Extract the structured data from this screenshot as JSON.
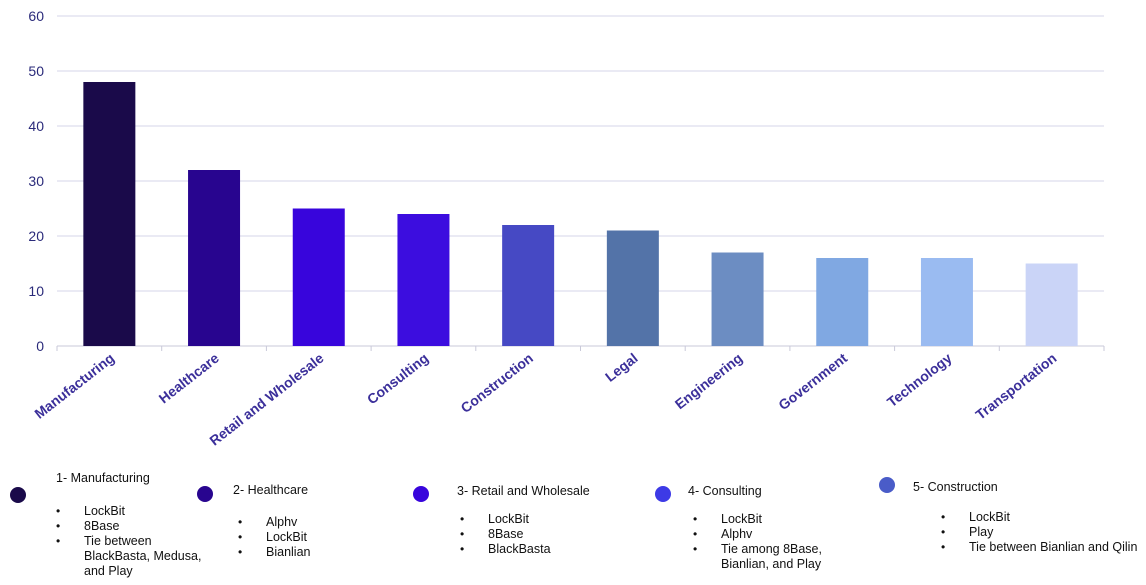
{
  "chart_data": {
    "type": "bar",
    "categories": [
      "Manufacturing",
      "Healthcare",
      "Retail and Wholesale",
      "Consulting",
      "Construction",
      "Legal",
      "Engineering",
      "Government",
      "Technology",
      "Transportation"
    ],
    "values": [
      48,
      32,
      25,
      24,
      22,
      21,
      17,
      16,
      16,
      15
    ],
    "colors": [
      "#1a0a4a",
      "#28058f",
      "#3805dc",
      "#3c0ddf",
      "#4649c4",
      "#5373a8",
      "#6c8dc2",
      "#80a8e2",
      "#9abbf1",
      "#cad4f7"
    ],
    "ylim": [
      0,
      60
    ],
    "yticks": [
      0,
      10,
      20,
      30,
      40,
      50,
      60
    ],
    "grid": true,
    "title": "",
    "xlabel": "",
    "ylabel": ""
  },
  "legend": [
    {
      "title": "1- Manufacturing",
      "color": "#1a0a4a",
      "items": [
        "LockBit",
        "8Base",
        "Tie between BlackBasta, Medusa, and Play"
      ]
    },
    {
      "title": "2- Healthcare",
      "color": "#28058f",
      "items": [
        "Alphv",
        "LockBit",
        "Bianlian"
      ]
    },
    {
      "title": "3- Retail and Wholesale",
      "color": "#3805dc",
      "items": [
        "LockBit",
        "8Base",
        "BlackBasta"
      ]
    },
    {
      "title": "4- Consulting",
      "color": "#3d3ae6",
      "items": [
        "LockBit",
        "Alphv",
        "Tie among 8Base, Bianlian, and Play"
      ]
    },
    {
      "title": "5- Construction",
      "color": "#4a5cc8",
      "items": [
        "LockBit",
        "Play",
        "Tie between Bianlian and Qilin"
      ]
    }
  ]
}
